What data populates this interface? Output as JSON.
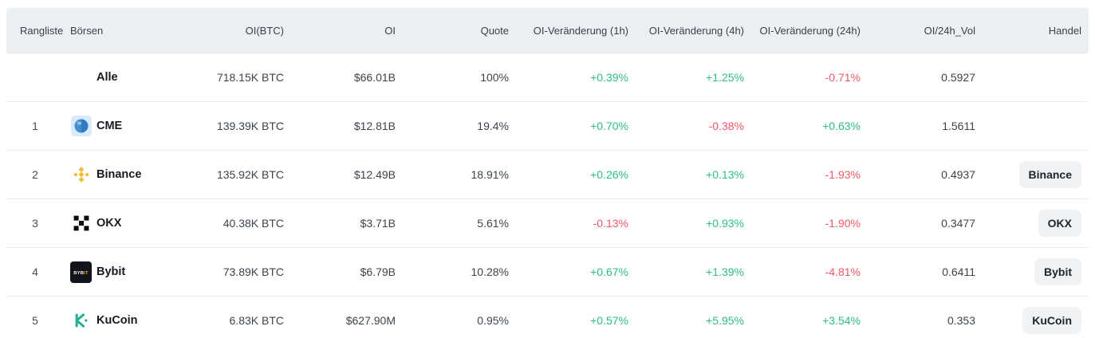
{
  "colors": {
    "positive": "#2ebd85",
    "negative": "#f25866",
    "header_bg": "#edf0f3",
    "row_border": "#e9ecef",
    "button_bg": "#f1f2f4",
    "binance_yellow": "#f3ba2f",
    "bybit_accent": "#f7a600",
    "kucoin_green": "#23af91",
    "cme_blue": "#2f7cc0"
  },
  "table": {
    "columns": [
      {
        "key": "rank",
        "label": "Rangliste"
      },
      {
        "key": "exchange",
        "label": "Börsen"
      },
      {
        "key": "oi_btc",
        "label": "OI(BTC)"
      },
      {
        "key": "oi",
        "label": "OI"
      },
      {
        "key": "quote",
        "label": "Quote"
      },
      {
        "key": "chg_1h",
        "label": "OI-Veränderung (1h)"
      },
      {
        "key": "chg_4h",
        "label": "OI-Veränderung (4h)"
      },
      {
        "key": "chg_24h",
        "label": "OI-Veränderung (24h)"
      },
      {
        "key": "oi_24h_vol",
        "label": "OI/24h_Vol"
      },
      {
        "key": "trade",
        "label": "Handel"
      }
    ],
    "rows": [
      {
        "rank": "",
        "name": "Alle",
        "icon": "",
        "oi_btc": "718.15K BTC",
        "oi": "$66.01B",
        "quote": "100%",
        "chg_1h": "+0.39%",
        "chg_4h": "+1.25%",
        "chg_24h": "-0.71%",
        "oi_24h_vol": "0.5927",
        "trade": ""
      },
      {
        "rank": "1",
        "name": "CME",
        "icon": "cme",
        "oi_btc": "139.39K BTC",
        "oi": "$12.81B",
        "quote": "19.4%",
        "chg_1h": "+0.70%",
        "chg_4h": "-0.38%",
        "chg_24h": "+0.63%",
        "oi_24h_vol": "1.5611",
        "trade": ""
      },
      {
        "rank": "2",
        "name": "Binance",
        "icon": "binance",
        "oi_btc": "135.92K BTC",
        "oi": "$12.49B",
        "quote": "18.91%",
        "chg_1h": "+0.26%",
        "chg_4h": "+0.13%",
        "chg_24h": "-1.93%",
        "oi_24h_vol": "0.4937",
        "trade": "Binance"
      },
      {
        "rank": "3",
        "name": "OKX",
        "icon": "okx",
        "oi_btc": "40.38K BTC",
        "oi": "$3.71B",
        "quote": "5.61%",
        "chg_1h": "-0.13%",
        "chg_4h": "+0.93%",
        "chg_24h": "-1.90%",
        "oi_24h_vol": "0.3477",
        "trade": "OKX"
      },
      {
        "rank": "4",
        "name": "Bybit",
        "icon": "bybit",
        "oi_btc": "73.89K BTC",
        "oi": "$6.79B",
        "quote": "10.28%",
        "chg_1h": "+0.67%",
        "chg_4h": "+1.39%",
        "chg_24h": "-4.81%",
        "oi_24h_vol": "0.6411",
        "trade": "Bybit"
      },
      {
        "rank": "5",
        "name": "KuCoin",
        "icon": "kucoin",
        "oi_btc": "6.83K BTC",
        "oi": "$627.90M",
        "quote": "0.95%",
        "chg_1h": "+0.57%",
        "chg_4h": "+5.95%",
        "chg_24h": "+3.54%",
        "oi_24h_vol": "0.353",
        "trade": "KuCoin"
      }
    ]
  }
}
